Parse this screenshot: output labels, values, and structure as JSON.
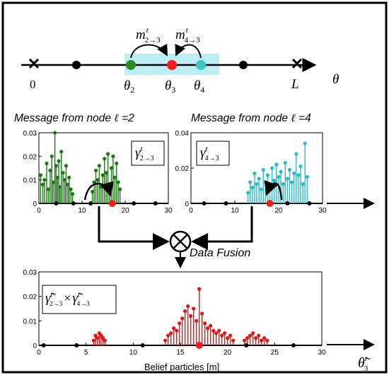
{
  "top_axis": {
    "origin_label": "0",
    "end_label": "L",
    "axis_symbol": "θ",
    "node_labels": [
      {
        "main": "θ",
        "sub": "2"
      },
      {
        "main": "θ",
        "sub": "3"
      },
      {
        "main": "θ",
        "sub": "4"
      }
    ],
    "messages": [
      {
        "main": "m",
        "sup": "t",
        "sub": "2→3"
      },
      {
        "main": "m",
        "sup": "t",
        "sub": "4→3"
      }
    ],
    "colors": {
      "node2": "#2e8b20",
      "node3": "#ff1a1a",
      "node4": "#3cc4c4",
      "highlight": "#bdeef5",
      "other": "#000000"
    }
  },
  "panel_left": {
    "title_prefix": "Message from node ",
    "ell": "ℓ",
    "title_suffix": " =2",
    "legend": {
      "main": "γ",
      "sup": "t",
      "sub": "2→3"
    },
    "color": "#1a7a12"
  },
  "panel_right": {
    "title_prefix": "Message from node ",
    "ell": "ℓ",
    "title_suffix": " =4",
    "legend": {
      "main": "γ",
      "sup": "t",
      "sub": "4→3"
    },
    "color": "#2bbcc8"
  },
  "fusion": {
    "symbol": "⊗",
    "label": "Data Fusion"
  },
  "panel_bottom": {
    "legend": {
      "a_main": "γ̃",
      "a_sup": "t",
      "a_sub": "2→3",
      "times": "×",
      "b_main": "γ̃",
      "b_sup": "t",
      "b_sub": "4→3"
    },
    "xlabel": "Belief particles [m]",
    "axis_symbol": {
      "main": "θ̃",
      "sup": "t",
      "sub": "3"
    },
    "color": "#e81010"
  },
  "chart_data": [
    {
      "type": "bar",
      "title": "Message from node ℓ =2",
      "xlim": [
        0,
        30
      ],
      "ylim": [
        0,
        0.03
      ],
      "xticks": [
        0,
        10,
        20,
        30
      ],
      "yticks": [
        0,
        0.01,
        0.02,
        0.03
      ],
      "ytick_labels": [
        "0",
        "0.01",
        "0.02",
        "0.03"
      ],
      "series": [
        {
          "name": "γ t 2→3",
          "x": [
            0.4,
            0.9,
            1.3,
            1.8,
            2.2,
            2.6,
            3.0,
            3.3,
            3.7,
            4.0,
            4.3,
            4.6,
            4.9,
            5.2,
            5.6,
            6.0,
            6.3,
            6.7,
            7.0,
            7.4,
            7.8,
            12.4,
            12.8,
            13.2,
            13.6,
            14.0,
            14.4,
            14.8,
            15.2,
            15.6,
            16.0,
            16.4,
            16.8,
            17.2,
            17.6,
            18.0,
            18.4,
            18.8
          ],
          "y": [
            0.012,
            0.008,
            0.01,
            0.017,
            0.006,
            0.014,
            0.02,
            0.009,
            0.03,
            0.016,
            0.011,
            0.018,
            0.007,
            0.022,
            0.013,
            0.01,
            0.016,
            0.008,
            0.011,
            0.006,
            0.004,
            0.005,
            0.009,
            0.014,
            0.01,
            0.016,
            0.007,
            0.012,
            0.019,
            0.013,
            0.021,
            0.008,
            0.015,
            0.02,
            0.011,
            0.017,
            0.009,
            0.006
          ]
        }
      ],
      "markers": [
        {
          "x": 12,
          "color": "black"
        },
        {
          "x": 17,
          "color": "red"
        },
        {
          "x": 4,
          "color": "black"
        },
        {
          "x": 8,
          "color": "black"
        },
        {
          "x": 22,
          "color": "black"
        },
        {
          "x": 27,
          "color": "black"
        }
      ]
    },
    {
      "type": "bar",
      "title": "Message from node ℓ =4",
      "xlim": [
        0,
        30
      ],
      "ylim": [
        0,
        0.04
      ],
      "xticks": [
        0,
        10,
        20,
        30
      ],
      "yticks": [
        0,
        0.02,
        0.04
      ],
      "ytick_labels": [
        "0",
        "0.02",
        "0.04"
      ],
      "series": [
        {
          "name": "γ t 4→3",
          "x": [
            13.0,
            13.5,
            14.0,
            14.5,
            15.0,
            15.5,
            16.0,
            16.5,
            17.0,
            17.5,
            18.0,
            18.5,
            19.0,
            19.5,
            20.0,
            20.5,
            21.0,
            21.5,
            22.0,
            22.5,
            23.0,
            23.5,
            24.0,
            24.5,
            25.0,
            25.5,
            26.0,
            26.5
          ],
          "y": [
            0.006,
            0.012,
            0.009,
            0.017,
            0.011,
            0.014,
            0.008,
            0.019,
            0.012,
            0.016,
            0.01,
            0.02,
            0.013,
            0.022,
            0.015,
            0.018,
            0.011,
            0.023,
            0.014,
            0.019,
            0.012,
            0.017,
            0.028,
            0.016,
            0.021,
            0.011,
            0.034,
            0.015
          ]
        }
      ],
      "markers": [
        {
          "x": 3,
          "color": "black"
        },
        {
          "x": 8,
          "color": "black"
        },
        {
          "x": 18,
          "color": "red"
        },
        {
          "x": 22,
          "color": "black"
        },
        {
          "x": 27,
          "color": "black"
        }
      ]
    },
    {
      "type": "bar",
      "xlabel": "Belief particles [m]",
      "xlim": [
        0,
        30
      ],
      "ylim": [
        0,
        0.03
      ],
      "xticks": [
        0,
        5,
        10,
        15,
        20,
        25,
        30
      ],
      "yticks": [
        0,
        0.01,
        0.02,
        0.03
      ],
      "ytick_labels": [
        "0",
        "0.01",
        "0.02",
        "0.03"
      ],
      "series": [
        {
          "name": "γ̃ t 2→3 × γ̃ t 4→3",
          "x": [
            5.8,
            6.0,
            6.2,
            6.4,
            6.6,
            6.8,
            7.0,
            13.4,
            13.7,
            14.0,
            14.3,
            14.6,
            14.9,
            15.2,
            15.5,
            15.8,
            16.1,
            16.4,
            16.7,
            17.0,
            17.3,
            17.6,
            17.9,
            18.2,
            18.5,
            18.8,
            19.1,
            19.4,
            19.7,
            20.0,
            20.3,
            20.6,
            21.8,
            22.1,
            22.4,
            22.7,
            23.0,
            23.3,
            23.6,
            23.9,
            24.2
          ],
          "y": [
            0.002,
            0.004,
            0.003,
            0.005,
            0.004,
            0.003,
            0.002,
            0.002,
            0.004,
            0.005,
            0.007,
            0.006,
            0.009,
            0.011,
            0.014,
            0.016,
            0.012,
            0.015,
            0.01,
            0.023,
            0.013,
            0.009,
            0.007,
            0.008,
            0.006,
            0.005,
            0.006,
            0.004,
            0.005,
            0.003,
            0.004,
            0.002,
            0.002,
            0.003,
            0.004,
            0.005,
            0.003,
            0.004,
            0.002,
            0.003,
            0.002
          ]
        }
      ],
      "markers": [
        {
          "x": 0.5,
          "color": "black"
        },
        {
          "x": 4,
          "color": "black"
        },
        {
          "x": 11,
          "color": "black"
        },
        {
          "x": 17,
          "color": "red"
        },
        {
          "x": 22,
          "color": "black"
        },
        {
          "x": 27,
          "color": "black"
        }
      ]
    }
  ]
}
